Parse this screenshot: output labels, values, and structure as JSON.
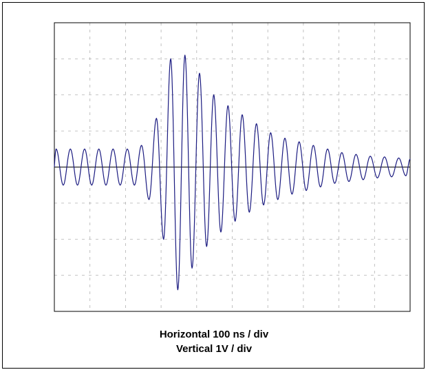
{
  "captions": {
    "horizontal": "Horizontal  100 ns / div",
    "vertical": "Vertical  1V / div"
  },
  "colors": {
    "trace": "#1a1a80",
    "grid": "#b0b0b0",
    "axis": "#000000"
  },
  "chart_data": {
    "type": "line",
    "title": "",
    "xlabel": "Horizontal  100 ns / div",
    "ylabel": "Vertical  1V / div",
    "x_unit": "ns",
    "y_unit": "V",
    "xlim": [
      0,
      1000
    ],
    "ylim": [
      -4,
      4
    ],
    "x_divisions": 10,
    "y_divisions": 8,
    "grid": true,
    "legend": "none",
    "series": [
      {
        "name": "",
        "peaks": [
          {
            "x": 5,
            "y": 0.5
          },
          {
            "x": 45,
            "y": 0.5
          },
          {
            "x": 85,
            "y": 0.5
          },
          {
            "x": 125,
            "y": 0.5
          },
          {
            "x": 165,
            "y": 0.5
          },
          {
            "x": 205,
            "y": 0.5
          },
          {
            "x": 245,
            "y": 0.6
          },
          {
            "x": 287,
            "y": 1.35
          },
          {
            "x": 327,
            "y": 3.0
          },
          {
            "x": 367,
            "y": 3.1
          },
          {
            "x": 408,
            "y": 2.6
          },
          {
            "x": 448,
            "y": 2.0
          },
          {
            "x": 488,
            "y": 1.7
          },
          {
            "x": 528,
            "y": 1.45
          },
          {
            "x": 568,
            "y": 1.2
          },
          {
            "x": 608,
            "y": 0.95
          },
          {
            "x": 648,
            "y": 0.8
          },
          {
            "x": 688,
            "y": 0.7
          },
          {
            "x": 728,
            "y": 0.6
          },
          {
            "x": 768,
            "y": 0.5
          },
          {
            "x": 808,
            "y": 0.4
          },
          {
            "x": 848,
            "y": 0.35
          },
          {
            "x": 888,
            "y": 0.3
          },
          {
            "x": 928,
            "y": 0.28
          },
          {
            "x": 968,
            "y": 0.25
          },
          {
            "x": 1000,
            "y": 0.22
          }
        ],
        "troughs": [
          {
            "x": 25,
            "y": -0.5
          },
          {
            "x": 65,
            "y": -0.5
          },
          {
            "x": 105,
            "y": -0.5
          },
          {
            "x": 145,
            "y": -0.5
          },
          {
            "x": 185,
            "y": -0.5
          },
          {
            "x": 225,
            "y": -0.5
          },
          {
            "x": 266,
            "y": -0.9
          },
          {
            "x": 307,
            "y": -2.0
          },
          {
            "x": 347,
            "y": -3.4
          },
          {
            "x": 387,
            "y": -2.8
          },
          {
            "x": 428,
            "y": -2.2
          },
          {
            "x": 468,
            "y": -1.8
          },
          {
            "x": 508,
            "y": -1.5
          },
          {
            "x": 548,
            "y": -1.25
          },
          {
            "x": 588,
            "y": -1.05
          },
          {
            "x": 628,
            "y": -0.9
          },
          {
            "x": 668,
            "y": -0.75
          },
          {
            "x": 708,
            "y": -0.65
          },
          {
            "x": 748,
            "y": -0.55
          },
          {
            "x": 788,
            "y": -0.45
          },
          {
            "x": 828,
            "y": -0.4
          },
          {
            "x": 868,
            "y": -0.35
          },
          {
            "x": 908,
            "y": -0.3
          },
          {
            "x": 948,
            "y": -0.27
          },
          {
            "x": 988,
            "y": -0.24
          }
        ]
      }
    ]
  }
}
